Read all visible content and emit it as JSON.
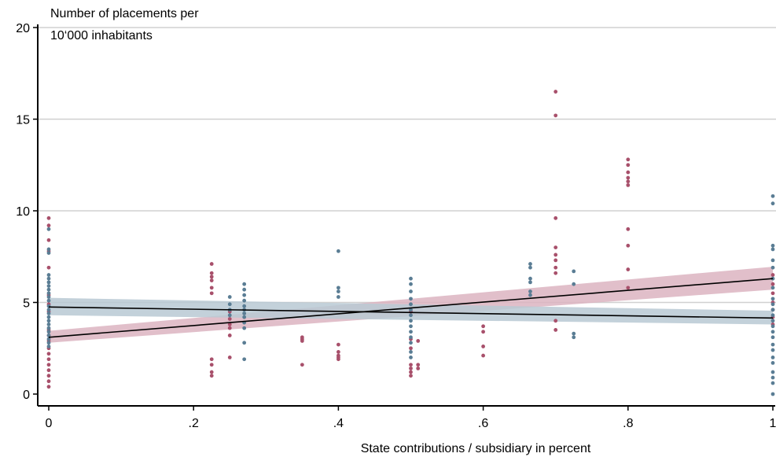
{
  "chart_data": {
    "type": "scatter",
    "title": "",
    "ylabel_lines": [
      "Number of placements per",
      "10‘000 inhabitants"
    ],
    "xlabel": "State contributions / subsidiary in percent",
    "xlim": [
      0,
      1
    ],
    "ylim": [
      0,
      20
    ],
    "xticks": [
      0,
      0.2,
      0.4,
      0.6,
      0.8,
      1
    ],
    "xtick_labels": [
      "0",
      ".2",
      ".4",
      ".6",
      ".8",
      "1"
    ],
    "yticks": [
      0,
      5,
      10,
      15,
      20
    ],
    "ytick_labels": [
      "0",
      "5",
      "10",
      "15",
      "20"
    ],
    "grid": "horizontal",
    "legend": "none",
    "series": [
      {
        "color": "#a8506b",
        "band_color": "#dcb4c1",
        "fit_line": {
          "x": [
            0,
            1
          ],
          "y": [
            3.1,
            6.3
          ]
        },
        "band": {
          "lower": [
            2.8,
            5.7
          ],
          "upper": [
            3.45,
            6.95
          ]
        },
        "points": [
          [
            0,
            9.6
          ],
          [
            0,
            9.2
          ],
          [
            0,
            8.4
          ],
          [
            0,
            7.8
          ],
          [
            0,
            6.9
          ],
          [
            0,
            5.4
          ],
          [
            0,
            4.9
          ],
          [
            0,
            4.5
          ],
          [
            0,
            3.5
          ],
          [
            0,
            3.2
          ],
          [
            0,
            2.9
          ],
          [
            0,
            2.5
          ],
          [
            0,
            2.2
          ],
          [
            0,
            1.9
          ],
          [
            0,
            1.6
          ],
          [
            0,
            1.3
          ],
          [
            0,
            1.0
          ],
          [
            0,
            0.7
          ],
          [
            0,
            0.4
          ],
          [
            0.225,
            7.1
          ],
          [
            0.225,
            6.6
          ],
          [
            0.225,
            6.4
          ],
          [
            0.225,
            6.2
          ],
          [
            0.225,
            5.8
          ],
          [
            0.225,
            5.5
          ],
          [
            0.225,
            1.9
          ],
          [
            0.225,
            1.6
          ],
          [
            0.225,
            1.2
          ],
          [
            0.225,
            1.0
          ],
          [
            0.25,
            4.5
          ],
          [
            0.25,
            4.1
          ],
          [
            0.25,
            3.8
          ],
          [
            0.25,
            3.6
          ],
          [
            0.25,
            3.2
          ],
          [
            0.25,
            2.0
          ],
          [
            0.35,
            3.1
          ],
          [
            0.35,
            3.0
          ],
          [
            0.35,
            2.9
          ],
          [
            0.35,
            1.6
          ],
          [
            0.4,
            2.7
          ],
          [
            0.4,
            2.3
          ],
          [
            0.4,
            2.1
          ],
          [
            0.4,
            2.0
          ],
          [
            0.4,
            1.9
          ],
          [
            0.5,
            4.5
          ],
          [
            0.5,
            3.0
          ],
          [
            0.5,
            2.5
          ],
          [
            0.5,
            1.6
          ],
          [
            0.5,
            1.4
          ],
          [
            0.5,
            1.2
          ],
          [
            0.5,
            1.0
          ],
          [
            0.51,
            2.9
          ],
          [
            0.51,
            1.6
          ],
          [
            0.51,
            1.4
          ],
          [
            0.6,
            3.7
          ],
          [
            0.6,
            3.4
          ],
          [
            0.6,
            2.6
          ],
          [
            0.6,
            2.1
          ],
          [
            0.7,
            16.5
          ],
          [
            0.7,
            15.2
          ],
          [
            0.7,
            9.6
          ],
          [
            0.7,
            8.0
          ],
          [
            0.7,
            7.6
          ],
          [
            0.7,
            7.3
          ],
          [
            0.7,
            6.9
          ],
          [
            0.7,
            6.6
          ],
          [
            0.7,
            4.0
          ],
          [
            0.7,
            3.5
          ],
          [
            0.8,
            12.8
          ],
          [
            0.8,
            12.5
          ],
          [
            0.8,
            12.1
          ],
          [
            0.8,
            11.8
          ],
          [
            0.8,
            11.6
          ],
          [
            0.8,
            11.4
          ],
          [
            0.8,
            9.0
          ],
          [
            0.8,
            8.1
          ],
          [
            0.8,
            6.8
          ],
          [
            0.8,
            5.8
          ],
          [
            1,
            6.5
          ],
          [
            1,
            6.0
          ],
          [
            1,
            5.5
          ],
          [
            1,
            5.0
          ],
          [
            1,
            4.6
          ],
          [
            1,
            4.2
          ],
          [
            1,
            3.8
          ]
        ]
      },
      {
        "color": "#5a7d94",
        "band_color": "#b9c9d4",
        "fit_line": {
          "x": [
            0,
            1
          ],
          "y": [
            4.75,
            4.15
          ]
        },
        "band": {
          "lower": [
            4.3,
            3.8
          ],
          "upper": [
            5.25,
            4.55
          ]
        },
        "points": [
          [
            0,
            9.0
          ],
          [
            0,
            7.9
          ],
          [
            0,
            7.7
          ],
          [
            0,
            6.5
          ],
          [
            0,
            6.3
          ],
          [
            0,
            6.1
          ],
          [
            0,
            5.9
          ],
          [
            0,
            5.7
          ],
          [
            0,
            5.5
          ],
          [
            0,
            5.3
          ],
          [
            0,
            5.1
          ],
          [
            0,
            4.8
          ],
          [
            0,
            4.6
          ],
          [
            0,
            4.4
          ],
          [
            0,
            4.2
          ],
          [
            0,
            4.0
          ],
          [
            0,
            3.8
          ],
          [
            0,
            3.6
          ],
          [
            0,
            3.4
          ],
          [
            0,
            3.2
          ],
          [
            0,
            3.0
          ],
          [
            0,
            2.8
          ],
          [
            0,
            2.6
          ],
          [
            0.25,
            5.3
          ],
          [
            0.25,
            4.9
          ],
          [
            0.25,
            4.6
          ],
          [
            0.25,
            4.3
          ],
          [
            0.27,
            6.0
          ],
          [
            0.27,
            5.7
          ],
          [
            0.27,
            5.4
          ],
          [
            0.27,
            5.1
          ],
          [
            0.27,
            4.8
          ],
          [
            0.27,
            4.6
          ],
          [
            0.27,
            4.4
          ],
          [
            0.27,
            4.2
          ],
          [
            0.27,
            3.9
          ],
          [
            0.27,
            3.6
          ],
          [
            0.27,
            2.8
          ],
          [
            0.27,
            1.9
          ],
          [
            0.4,
            7.8
          ],
          [
            0.4,
            5.8
          ],
          [
            0.4,
            5.6
          ],
          [
            0.4,
            5.3
          ],
          [
            0.5,
            6.3
          ],
          [
            0.5,
            6.0
          ],
          [
            0.5,
            5.6
          ],
          [
            0.5,
            5.2
          ],
          [
            0.5,
            4.9
          ],
          [
            0.5,
            4.6
          ],
          [
            0.5,
            4.3
          ],
          [
            0.5,
            4.0
          ],
          [
            0.5,
            3.7
          ],
          [
            0.5,
            3.4
          ],
          [
            0.5,
            3.1
          ],
          [
            0.5,
            2.8
          ],
          [
            0.5,
            2.3
          ],
          [
            0.5,
            2.0
          ],
          [
            0.665,
            7.1
          ],
          [
            0.665,
            6.9
          ],
          [
            0.665,
            6.3
          ],
          [
            0.665,
            6.1
          ],
          [
            0.665,
            5.6
          ],
          [
            0.665,
            5.4
          ],
          [
            0.725,
            6.7
          ],
          [
            0.725,
            6.0
          ],
          [
            0.725,
            3.3
          ],
          [
            0.725,
            3.1
          ],
          [
            1,
            10.8
          ],
          [
            1,
            10.4
          ],
          [
            1,
            8.1
          ],
          [
            1,
            7.9
          ],
          [
            1,
            7.3
          ],
          [
            1,
            6.9
          ],
          [
            1,
            6.3
          ],
          [
            1,
            5.8
          ],
          [
            1,
            5.2
          ],
          [
            1,
            4.9
          ],
          [
            1,
            4.6
          ],
          [
            1,
            4.3
          ],
          [
            1,
            4.0
          ],
          [
            1,
            3.7
          ],
          [
            1,
            3.4
          ],
          [
            1,
            3.1
          ],
          [
            1,
            2.7
          ],
          [
            1,
            2.4
          ],
          [
            1,
            2.0
          ],
          [
            1,
            1.7
          ],
          [
            1,
            1.2
          ],
          [
            1,
            0.9
          ],
          [
            1,
            0.6
          ],
          [
            1,
            0.0
          ]
        ]
      }
    ]
  }
}
